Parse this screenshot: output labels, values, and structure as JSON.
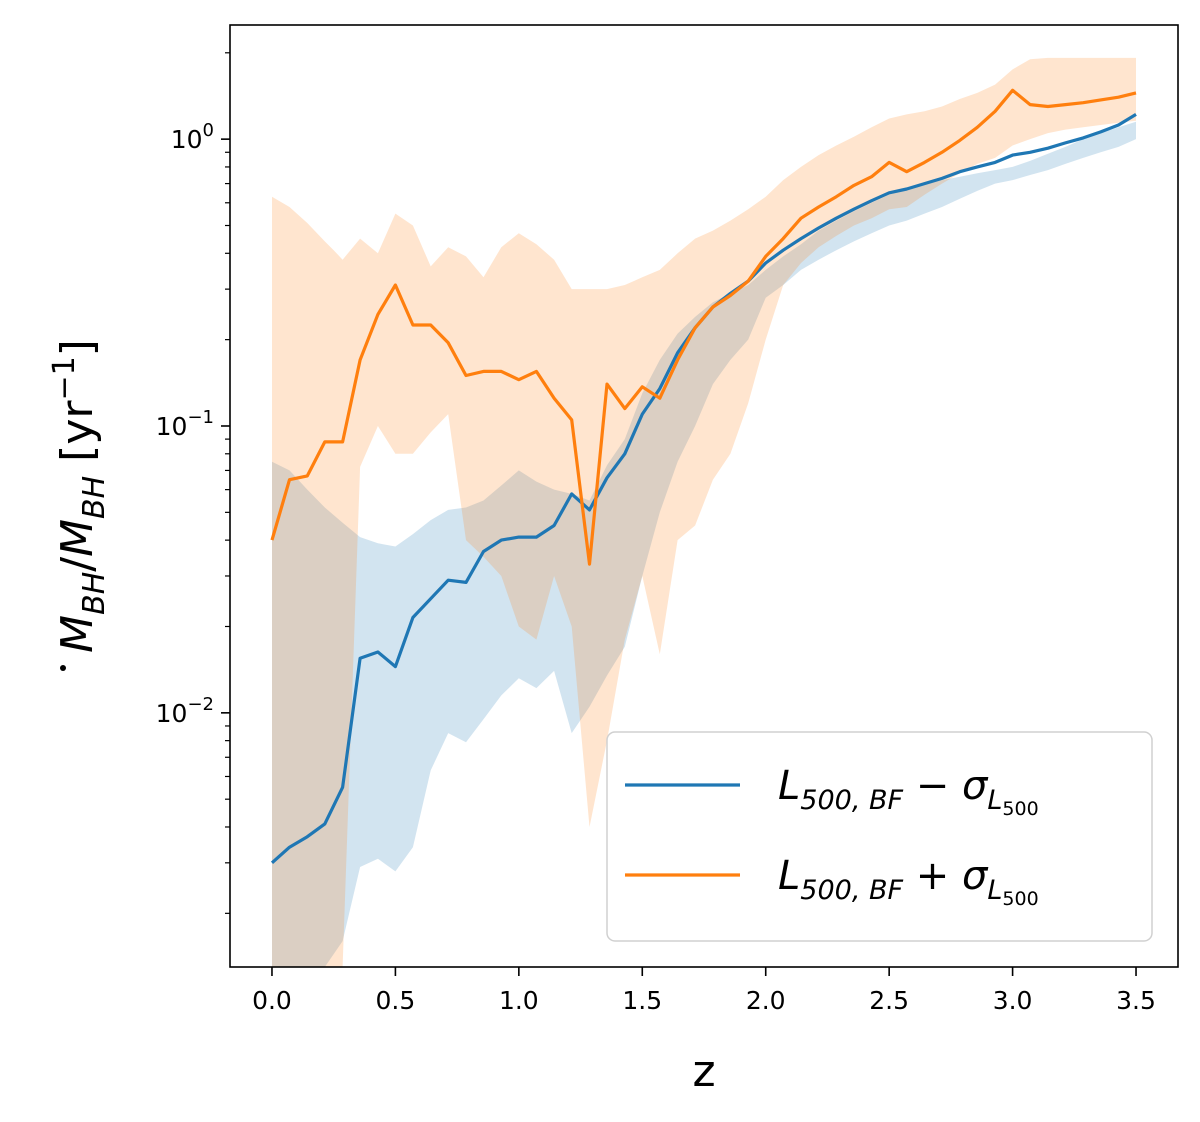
{
  "chart_data": {
    "type": "line",
    "title": "",
    "xlabel": "z",
    "ylabel": "Ṁ_BH/M_BH [yr⁻¹]",
    "yscale": "log",
    "xlim": [
      -0.17,
      3.67
    ],
    "ylim": [
      0.0013,
      2.5
    ],
    "xticks": [
      0.0,
      0.5,
      1.0,
      1.5,
      2.0,
      2.5,
      3.0,
      3.5
    ],
    "xtick_labels": [
      "0.0",
      "0.5",
      "1.0",
      "1.5",
      "2.0",
      "2.5",
      "3.0",
      "3.5"
    ],
    "yticks": [
      0.01,
      0.1,
      1
    ],
    "ytick_labels": [
      "10",
      "10",
      "10"
    ],
    "ytick_exponents": [
      "−2",
      "−1",
      "0"
    ],
    "legend_position": "lower-right",
    "series": [
      {
        "name": "L500,BF − σL500",
        "legend_main": "L",
        "legend_sub": "500, BF",
        "legend_op": " − σ",
        "legend_sigma_sub": "L",
        "legend_sigma_subsub": "500",
        "color": "#1f77b4",
        "band_color": "#1f77b4",
        "x": [
          0,
          0.071,
          0.143,
          0.214,
          0.286,
          0.357,
          0.429,
          0.5,
          0.571,
          0.643,
          0.714,
          0.786,
          0.857,
          0.929,
          1.0,
          1.071,
          1.143,
          1.214,
          1.286,
          1.357,
          1.429,
          1.5,
          1.571,
          1.643,
          1.714,
          1.786,
          1.857,
          1.929,
          2.0,
          2.071,
          2.143,
          2.214,
          2.286,
          2.357,
          2.429,
          2.5,
          2.571,
          2.643,
          2.714,
          2.786,
          2.857,
          2.929,
          3.0,
          3.071,
          3.143,
          3.214,
          3.286,
          3.357,
          3.429,
          3.5
        ],
        "y": [
          0.003,
          0.0034,
          0.0037,
          0.0041,
          0.0055,
          0.0155,
          0.0163,
          0.0145,
          0.0215,
          0.025,
          0.029,
          0.0285,
          0.0365,
          0.04,
          0.041,
          0.041,
          0.045,
          0.058,
          0.051,
          0.066,
          0.08,
          0.11,
          0.135,
          0.18,
          0.22,
          0.26,
          0.29,
          0.32,
          0.37,
          0.41,
          0.45,
          0.49,
          0.53,
          0.57,
          0.61,
          0.65,
          0.67,
          0.7,
          0.73,
          0.77,
          0.8,
          0.83,
          0.88,
          0.9,
          0.93,
          0.97,
          1.01,
          1.06,
          1.12,
          1.22
        ],
        "lower": [
          0.0013,
          0.0013,
          0.0013,
          0.0013,
          0.0016,
          0.0029,
          0.0031,
          0.0028,
          0.0034,
          0.0063,
          0.0085,
          0.0079,
          0.0095,
          0.0115,
          0.0132,
          0.0122,
          0.014,
          0.0085,
          0.0105,
          0.0135,
          0.017,
          0.03,
          0.05,
          0.075,
          0.1,
          0.14,
          0.17,
          0.2,
          0.28,
          0.31,
          0.35,
          0.38,
          0.41,
          0.44,
          0.47,
          0.5,
          0.52,
          0.55,
          0.58,
          0.62,
          0.66,
          0.7,
          0.72,
          0.75,
          0.78,
          0.82,
          0.86,
          0.9,
          0.94,
          1.0
        ],
        "upper": [
          0.075,
          0.07,
          0.06,
          0.052,
          0.046,
          0.041,
          0.039,
          0.038,
          0.042,
          0.047,
          0.051,
          0.052,
          0.055,
          0.062,
          0.07,
          0.064,
          0.06,
          0.058,
          0.055,
          0.073,
          0.09,
          0.13,
          0.17,
          0.21,
          0.24,
          0.27,
          0.29,
          0.31,
          0.35,
          0.39,
          0.43,
          0.48,
          0.52,
          0.56,
          0.6,
          0.64,
          0.67,
          0.7,
          0.72,
          0.74,
          0.76,
          0.78,
          0.8,
          0.84,
          0.89,
          0.94,
          1.0,
          1.05,
          1.1,
          1.15
        ]
      },
      {
        "name": "L500,BF + σL500",
        "legend_main": "L",
        "legend_sub": "500, BF",
        "legend_op": " + σ",
        "legend_sigma_sub": "L",
        "legend_sigma_subsub": "500",
        "color": "#ff7f0e",
        "band_color": "#ff7f0e",
        "x": [
          0,
          0.071,
          0.143,
          0.214,
          0.25,
          0.286,
          0.357,
          0.429,
          0.5,
          0.571,
          0.643,
          0.714,
          0.786,
          0.857,
          0.929,
          1.0,
          1.071,
          1.143,
          1.214,
          1.286,
          1.357,
          1.429,
          1.5,
          1.571,
          1.643,
          1.714,
          1.786,
          1.857,
          1.929,
          2.0,
          2.071,
          2.143,
          2.214,
          2.286,
          2.357,
          2.429,
          2.5,
          2.571,
          2.643,
          2.714,
          2.786,
          2.857,
          2.929,
          3.0,
          3.071,
          3.143,
          3.214,
          3.286,
          3.357,
          3.429,
          3.5
        ],
        "y": [
          0.04,
          0.065,
          0.067,
          0.088,
          0.088,
          0.088,
          0.17,
          0.245,
          0.31,
          0.225,
          0.225,
          0.195,
          0.15,
          0.155,
          0.155,
          0.145,
          0.155,
          0.125,
          0.105,
          0.033,
          0.14,
          0.115,
          0.137,
          0.125,
          0.17,
          0.22,
          0.26,
          0.285,
          0.32,
          0.39,
          0.45,
          0.53,
          0.58,
          0.63,
          0.69,
          0.74,
          0.83,
          0.77,
          0.83,
          0.9,
          0.99,
          1.1,
          1.25,
          1.48,
          1.32,
          1.3,
          1.32,
          1.34,
          1.37,
          1.4,
          1.45
        ],
        "lower": [
          0.0013,
          0.0013,
          0.0013,
          0.0013,
          0.0013,
          0.0013,
          0.072,
          0.1,
          0.08,
          0.08,
          0.095,
          0.11,
          0.04,
          0.035,
          0.03,
          0.02,
          0.018,
          0.03,
          0.02,
          0.004,
          0.008,
          0.018,
          0.03,
          0.016,
          0.04,
          0.045,
          0.065,
          0.08,
          0.12,
          0.2,
          0.31,
          0.37,
          0.42,
          0.46,
          0.5,
          0.53,
          0.57,
          0.58,
          0.64,
          0.7,
          0.76,
          0.82,
          0.86,
          0.95,
          1.0,
          1.05,
          1.08,
          1.1,
          1.12,
          1.14,
          1.16
        ],
        "upper": [
          0.63,
          0.58,
          0.51,
          0.44,
          0.41,
          0.38,
          0.45,
          0.4,
          0.55,
          0.5,
          0.36,
          0.42,
          0.39,
          0.33,
          0.42,
          0.47,
          0.43,
          0.38,
          0.3,
          0.3,
          0.3,
          0.31,
          0.33,
          0.35,
          0.4,
          0.45,
          0.48,
          0.52,
          0.57,
          0.63,
          0.72,
          0.8,
          0.88,
          0.95,
          1.02,
          1.1,
          1.18,
          1.22,
          1.25,
          1.3,
          1.38,
          1.45,
          1.55,
          1.75,
          1.9,
          1.92,
          1.92,
          1.92,
          1.92,
          1.92,
          1.92
        ]
      }
    ]
  }
}
